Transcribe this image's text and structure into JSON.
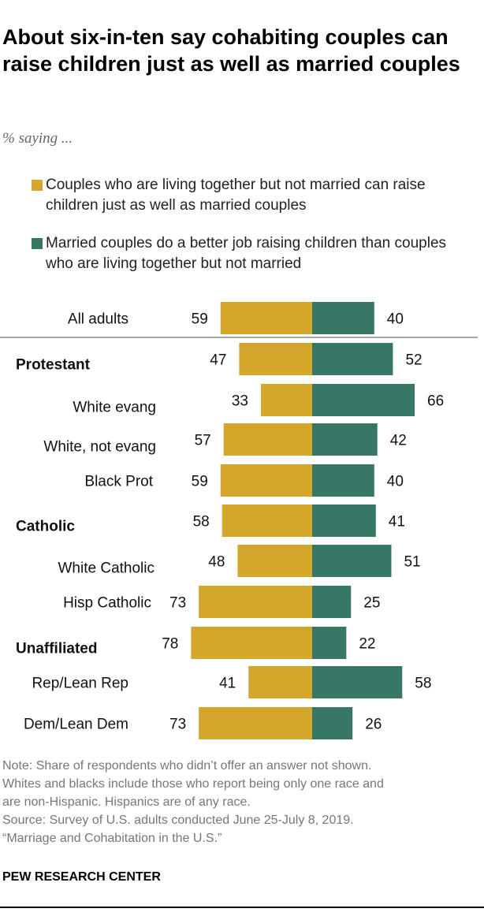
{
  "title": "About six-in-ten say cohabiting couples can raise children just as well as married couples",
  "subtitle": "% saying ...",
  "colors": {
    "cohabiting": "#D4A72C",
    "married": "#387766"
  },
  "legend": [
    "Couples who are living together but not married can raise children just as well as married couples",
    "Married couples do a better job raising children than couples who are living together but not married"
  ],
  "chart_data": {
    "type": "bar",
    "orientation": "horizontal-diverging",
    "categories": [
      "All adults",
      "Protestant",
      "White evang",
      "White, not evang",
      "Black Prot",
      "Catholic",
      "White Catholic",
      "Hisp Catholic",
      "Unaffiliated",
      "Rep/Lean Rep",
      "Dem/Lean Dem"
    ],
    "bold_categories": [
      "Protestant",
      "Catholic",
      "Unaffiliated"
    ],
    "series": [
      {
        "name": "Couples who are living together but not married can raise children just as well as married couples",
        "values": [
          59,
          47,
          33,
          57,
          59,
          58,
          48,
          73,
          78,
          41,
          73
        ]
      },
      {
        "name": "Married couples do a better job raising children than couples who are living together but not married",
        "values": [
          40,
          52,
          66,
          42,
          40,
          41,
          51,
          25,
          22,
          58,
          26
        ]
      }
    ]
  },
  "note": [
    "Note: Share of respondents who didn’t offer an answer not shown.",
    "Whites and blacks include those who report being only one race and",
    "are non-Hispanic. Hispanics are of any race.",
    "Source: Survey of U.S. adults conducted June 25-July 8, 2019.",
    "“Marriage and Cohabitation in the U.S.”"
  ],
  "brand": "PEW RESEARCH CENTER"
}
